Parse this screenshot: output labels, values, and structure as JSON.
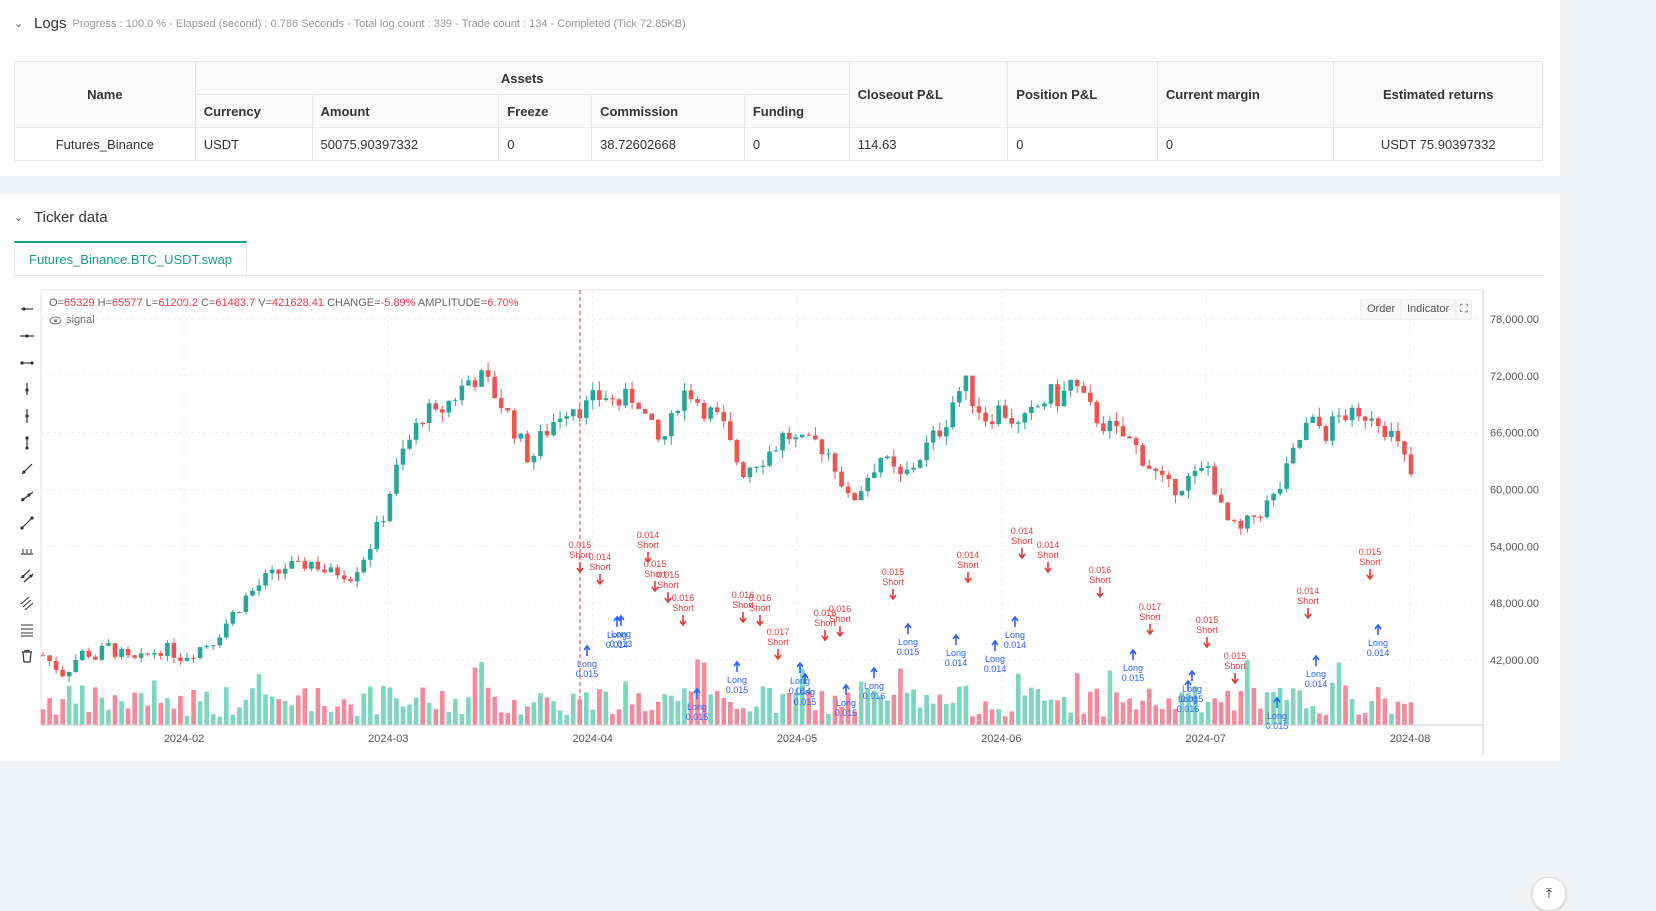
{
  "logs": {
    "title": "Logs",
    "summary": "Progress : 100.0 % - Elapsed (second) : 0.786 Seconds - Total log count : 339 - Trade count : 134 - Completed (Tick 72.85KB)",
    "table": {
      "headers": {
        "name": "Name",
        "assets": "Assets",
        "currency": "Currency",
        "amount": "Amount",
        "freeze": "Freeze",
        "commission": "Commission",
        "funding": "Funding",
        "closeout_pl": "Closeout P&L",
        "position_pl": "Position P&L",
        "current_margin": "Current margin",
        "estimated_returns": "Estimated returns"
      },
      "row": {
        "name": "Futures_Binance",
        "currency": "USDT",
        "amount": "50075.90397332",
        "freeze": "0",
        "commission": "38.72602668",
        "funding": "0",
        "closeout_pl": "114.63",
        "position_pl": "0",
        "current_margin": "0",
        "estimated_returns": "USDT 75.90397332"
      }
    }
  },
  "ticker": {
    "title": "Ticker data",
    "tab_label": "Futures_Binance.BTC_USDT.swap",
    "ohlc": {
      "o_label": "O=",
      "o": "65329",
      "h_label": "H=",
      "h": "65577",
      "l_label": "L=",
      "l": "61200.2",
      "c_label": "C=",
      "c": "61483.7",
      "v_label": "V=",
      "v": "421628.41",
      "change_label": "CHANGE=",
      "change": "-5.89%",
      "amp_label": "AMPLITUDE=",
      "amp": "6.70%"
    },
    "signal_label": "signal",
    "order_button": "Order",
    "indicator_button": "Indicator",
    "scroll_top": "⤒"
  },
  "colors": {
    "up": "#26a69a",
    "down": "#ef5350",
    "long": "#2962ff",
    "short": "#e53935",
    "accent": "#16a085"
  },
  "icons": [
    "horizontal-ray-icon",
    "horizontal-line-icon",
    "horizontal-segment-icon",
    "vertical-ray-icon",
    "vertical-line-icon",
    "vertical-segment-icon",
    "trend-line-icon",
    "ray-line-icon",
    "extended-line-icon",
    "price-range-icon",
    "parallel-channel-icon",
    "regression-channel-icon",
    "fib-retracement-icon",
    "trash-icon"
  ],
  "chart_data": {
    "type": "candlestick",
    "x_ticks": [
      "2024-02",
      "2024-03",
      "2024-04",
      "2024-05",
      "2024-06",
      "2024-07",
      "2024-08"
    ],
    "y_ticks": [
      "78,000.00",
      "72,000.00",
      "66,000.00",
      "60,000.00",
      "54,000.00",
      "48,000.00",
      "42,000.00"
    ],
    "ylim": [
      36000,
      80000
    ],
    "grid": true,
    "price_anchors": [
      42500,
      41500,
      40500,
      42000,
      43000,
      42200,
      43500,
      42800,
      42000,
      41800,
      42600,
      43200,
      43000,
      42400,
      42800,
      43500,
      44000,
      45500,
      47000,
      48500,
      49500,
      50500,
      51000,
      52000,
      51500,
      52500,
      52000,
      51000,
      51500,
      51000,
      52500,
      54500,
      57000,
      61000,
      64000,
      66000,
      68500,
      67500,
      69000,
      70000,
      71500,
      72000,
      71000,
      69500,
      67500,
      65000,
      63000,
      65500,
      67000,
      68500,
      69000,
      68500,
      69500,
      70000,
      69000,
      69500,
      70000,
      67000,
      65000,
      66000,
      70000,
      70500,
      69000,
      68000,
      67000,
      64000,
      62000,
      63000,
      63500,
      64500,
      66000,
      65000,
      64500,
      65000,
      64000,
      62000,
      58500,
      60000,
      62000,
      63500,
      62000,
      61000,
      62500,
      64000,
      65500,
      67000,
      70000,
      71000,
      69000,
      67500,
      68500,
      68000,
      66500,
      67500,
      69000,
      70000,
      69500,
      71500,
      69500,
      68000,
      67000,
      66000,
      65500,
      64500,
      63000,
      61500,
      60000,
      60500,
      61000,
      61500,
      62500,
      58000,
      56000,
      55500,
      57000,
      58000,
      59000,
      61000,
      64000,
      66500,
      67000,
      66000,
      67500,
      68000,
      67000,
      68500,
      67500,
      66000,
      64000,
      61500
    ],
    "signals": {
      "short": [
        [
          0.015,
          "Short"
        ],
        [
          0.014,
          "Short"
        ],
        [
          0.014,
          "Short"
        ],
        [
          0.015,
          "Short"
        ],
        [
          0.015,
          "Short"
        ],
        [
          0.016,
          "Short"
        ],
        [
          0.016,
          "Short"
        ],
        [
          0.016,
          "Short"
        ],
        [
          0.017,
          "Short"
        ],
        [
          0.016,
          "Short"
        ],
        [
          0.016,
          "Short"
        ],
        [
          0.015,
          "Short"
        ],
        [
          0.014,
          "Short"
        ],
        [
          0.014,
          "Short"
        ],
        [
          0.014,
          "Short"
        ],
        [
          0.016,
          "Short"
        ],
        [
          0.017,
          "Short"
        ],
        [
          0.015,
          "Short"
        ],
        [
          0.015,
          "Short"
        ],
        [
          0.014,
          "Short"
        ],
        [
          0.015,
          "Short"
        ]
      ],
      "long": [
        [
          "Long",
          0.015
        ],
        [
          "Long",
          0.014
        ],
        [
          "Long",
          0.013
        ],
        [
          "Long",
          0.015
        ],
        [
          "Long",
          0.015
        ],
        [
          "Long",
          0.014
        ],
        [
          "Long",
          0.015
        ],
        [
          "Long",
          0.015
        ],
        [
          "Long",
          0.016
        ],
        [
          "Long",
          0.015
        ],
        [
          "Long",
          0.014
        ],
        [
          "Long",
          0.014
        ],
        [
          "Long",
          0.014
        ],
        [
          "Long",
          0.015
        ],
        [
          "Long",
          0.015
        ],
        [
          "Long",
          0.016
        ],
        [
          "Long",
          0.015
        ],
        [
          "Long",
          0.014
        ],
        [
          "Long",
          0.014
        ]
      ]
    }
  }
}
